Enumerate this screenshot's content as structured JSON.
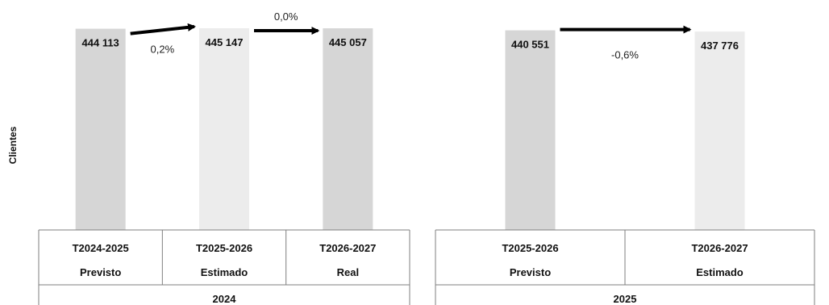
{
  "chart_data": [
    {
      "type": "bar",
      "ylabel": "Clientes",
      "group_label": "2024",
      "bars": [
        {
          "period": "T2024-2025",
          "status": "Previsto",
          "value": 444113,
          "label": "444 113",
          "color": "#d6d6d6"
        },
        {
          "period": "T2025-2026",
          "status": "Estimado",
          "value": 445147,
          "label": "445 147",
          "color": "#ececec"
        },
        {
          "period": "T2026-2027",
          "status": "Real",
          "value": 445057,
          "label": "445 057",
          "color": "#d6d6d6"
        }
      ],
      "changes": [
        "0,2%",
        "0,0%"
      ]
    },
    {
      "type": "bar",
      "group_label": "2025",
      "bars": [
        {
          "period": "T2025-2026",
          "status": "Previsto",
          "value": 440551,
          "label": "440 551",
          "color": "#d6d6d6"
        },
        {
          "period": "T2026-2027",
          "status": "Estimado",
          "value": 437776,
          "label": "437 776",
          "color": "#ececec"
        }
      ],
      "changes": [
        "-0,6%"
      ]
    }
  ]
}
